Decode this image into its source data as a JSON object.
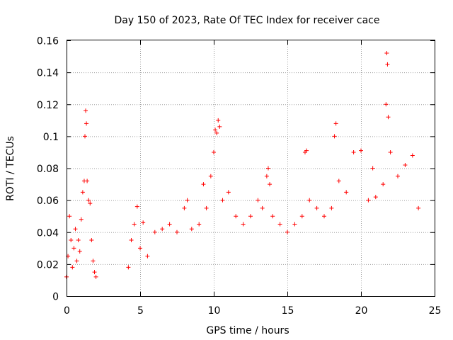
{
  "chart_data": {
    "type": "scatter",
    "title": "Day 150 of 2023, Rate Of TEC Index for receiver cace",
    "xlabel": "GPS time / hours",
    "ylabel": "ROTI / TECUs",
    "xlim": [
      0,
      25
    ],
    "ylim": [
      0,
      0.16
    ],
    "x_ticks": [
      "0",
      "5",
      "10",
      "15",
      "20",
      "25"
    ],
    "y_ticks": [
      "0",
      "0.02",
      "0.04",
      "0.06",
      "0.08",
      "0.1",
      "0.12",
      "0.14",
      "0.16"
    ],
    "grid": true,
    "marker": "+",
    "color": "#ff0000",
    "series": [
      {
        "values": [
          [
            0.0,
            0.012
          ],
          [
            0.1,
            0.025
          ],
          [
            0.2,
            0.05
          ],
          [
            0.3,
            0.035
          ],
          [
            0.4,
            0.018
          ],
          [
            0.5,
            0.03
          ],
          [
            0.6,
            0.042
          ],
          [
            0.7,
            0.022
          ],
          [
            0.8,
            0.035
          ],
          [
            0.9,
            0.028
          ],
          [
            1.0,
            0.048
          ],
          [
            1.1,
            0.065
          ],
          [
            1.2,
            0.072
          ],
          [
            1.25,
            0.1
          ],
          [
            1.3,
            0.116
          ],
          [
            1.35,
            0.108
          ],
          [
            1.4,
            0.072
          ],
          [
            1.5,
            0.06
          ],
          [
            1.6,
            0.058
          ],
          [
            1.7,
            0.035
          ],
          [
            1.8,
            0.022
          ],
          [
            1.9,
            0.015
          ],
          [
            2.0,
            0.012
          ],
          [
            4.2,
            0.018
          ],
          [
            4.4,
            0.035
          ],
          [
            4.6,
            0.045
          ],
          [
            4.8,
            0.056
          ],
          [
            5.0,
            0.03
          ],
          [
            5.2,
            0.046
          ],
          [
            5.5,
            0.025
          ],
          [
            6.0,
            0.04
          ],
          [
            6.5,
            0.042
          ],
          [
            7.0,
            0.045
          ],
          [
            7.5,
            0.04
          ],
          [
            8.0,
            0.055
          ],
          [
            8.2,
            0.06
          ],
          [
            8.5,
            0.042
          ],
          [
            9.0,
            0.045
          ],
          [
            9.3,
            0.07
          ],
          [
            9.5,
            0.055
          ],
          [
            9.8,
            0.075
          ],
          [
            10.0,
            0.09
          ],
          [
            10.1,
            0.104
          ],
          [
            10.2,
            0.102
          ],
          [
            10.3,
            0.11
          ],
          [
            10.4,
            0.106
          ],
          [
            10.6,
            0.06
          ],
          [
            11.0,
            0.065
          ],
          [
            11.5,
            0.05
          ],
          [
            12.0,
            0.045
          ],
          [
            12.5,
            0.05
          ],
          [
            13.0,
            0.06
          ],
          [
            13.3,
            0.055
          ],
          [
            13.6,
            0.075
          ],
          [
            13.7,
            0.08
          ],
          [
            13.8,
            0.07
          ],
          [
            14.0,
            0.05
          ],
          [
            14.5,
            0.045
          ],
          [
            15.0,
            0.04
          ],
          [
            15.5,
            0.045
          ],
          [
            16.0,
            0.05
          ],
          [
            16.2,
            0.09
          ],
          [
            16.3,
            0.091
          ],
          [
            16.5,
            0.06
          ],
          [
            17.0,
            0.055
          ],
          [
            17.5,
            0.05
          ],
          [
            18.0,
            0.055
          ],
          [
            18.2,
            0.1
          ],
          [
            18.3,
            0.108
          ],
          [
            18.5,
            0.072
          ],
          [
            19.0,
            0.065
          ],
          [
            19.5,
            0.09
          ],
          [
            20.0,
            0.091
          ],
          [
            20.5,
            0.06
          ],
          [
            20.8,
            0.08
          ],
          [
            21.0,
            0.062
          ],
          [
            21.5,
            0.07
          ],
          [
            21.7,
            0.12
          ],
          [
            21.75,
            0.152
          ],
          [
            21.8,
            0.145
          ],
          [
            21.85,
            0.112
          ],
          [
            22.0,
            0.09
          ],
          [
            22.5,
            0.075
          ],
          [
            23.0,
            0.082
          ],
          [
            23.5,
            0.088
          ],
          [
            23.9,
            0.055
          ]
        ]
      }
    ]
  }
}
